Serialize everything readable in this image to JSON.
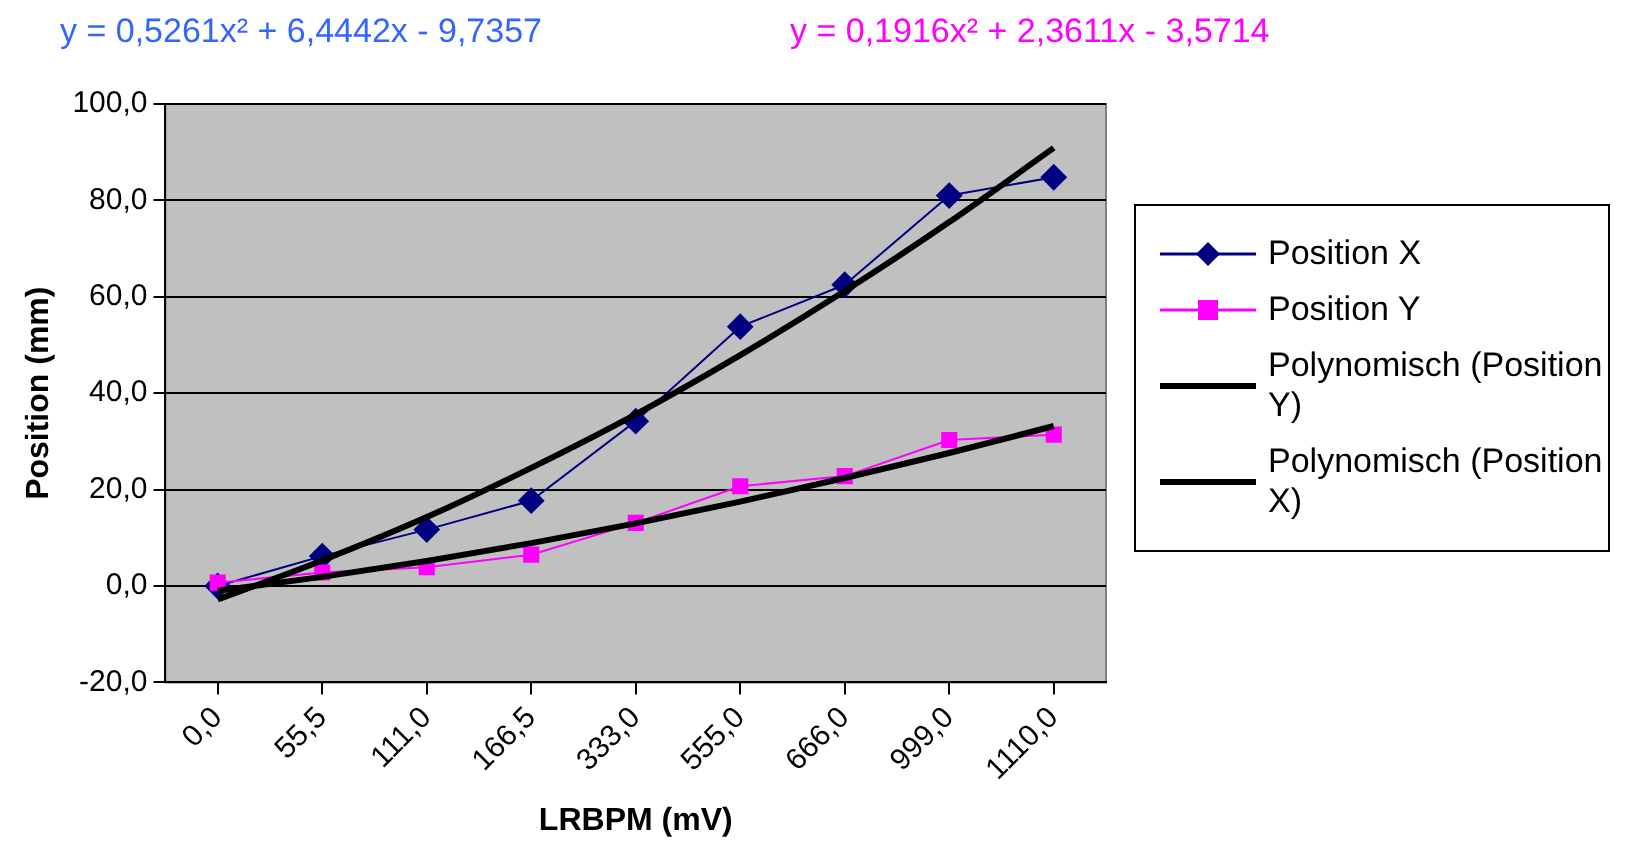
{
  "chart_data": {
    "type": "line",
    "xlabel": "LRBPM (mV)",
    "ylabel": "Position (mm)",
    "annotations": [
      "y = 0,5261x² + 6,4442x - 9,7357",
      "y = 0,1916x² + 2,3611x - 3,5714"
    ],
    "categories": [
      "0,0",
      "55,5",
      "111,0",
      "166,5",
      "333,0",
      "555,0",
      "666,0",
      "999,0",
      "1110,0"
    ],
    "series": [
      {
        "name": "Position X",
        "color": "#000080",
        "marker": "diamond",
        "values": [
          0.0,
          6.2,
          11.7,
          17.7,
          34.2,
          53.8,
          62.5,
          81.0,
          84.8
        ]
      },
      {
        "name": "Position Y",
        "color": "#ff00ff",
        "marker": "square",
        "values": [
          0.7,
          2.8,
          3.9,
          6.5,
          13.1,
          20.7,
          22.8,
          30.3,
          31.4
        ]
      },
      {
        "name": "Polynomisch (Position Y)",
        "color": "#000000",
        "marker": "none",
        "values": [
          -1.0,
          1.9,
          5.2,
          8.9,
          13.0,
          17.5,
          22.4,
          27.6,
          33.2
        ]
      },
      {
        "name": "Polynomisch (Position X)",
        "color": "#000000",
        "marker": "none",
        "values": [
          -2.8,
          5.3,
          14.3,
          24.5,
          35.6,
          47.9,
          61.2,
          75.5,
          90.9
        ]
      }
    ],
    "ylim": [
      -20,
      100
    ],
    "yticks": [
      {
        "value": -20,
        "label": "-20,0"
      },
      {
        "value": 0,
        "label": "0,0"
      },
      {
        "value": 20,
        "label": "20,0"
      },
      {
        "value": 40,
        "label": "40,0"
      },
      {
        "value": 60,
        "label": "60,0"
      },
      {
        "value": 80,
        "label": "80,0"
      },
      {
        "value": 100,
        "label": "100,0"
      }
    ],
    "grid": "y",
    "legend": "right"
  }
}
